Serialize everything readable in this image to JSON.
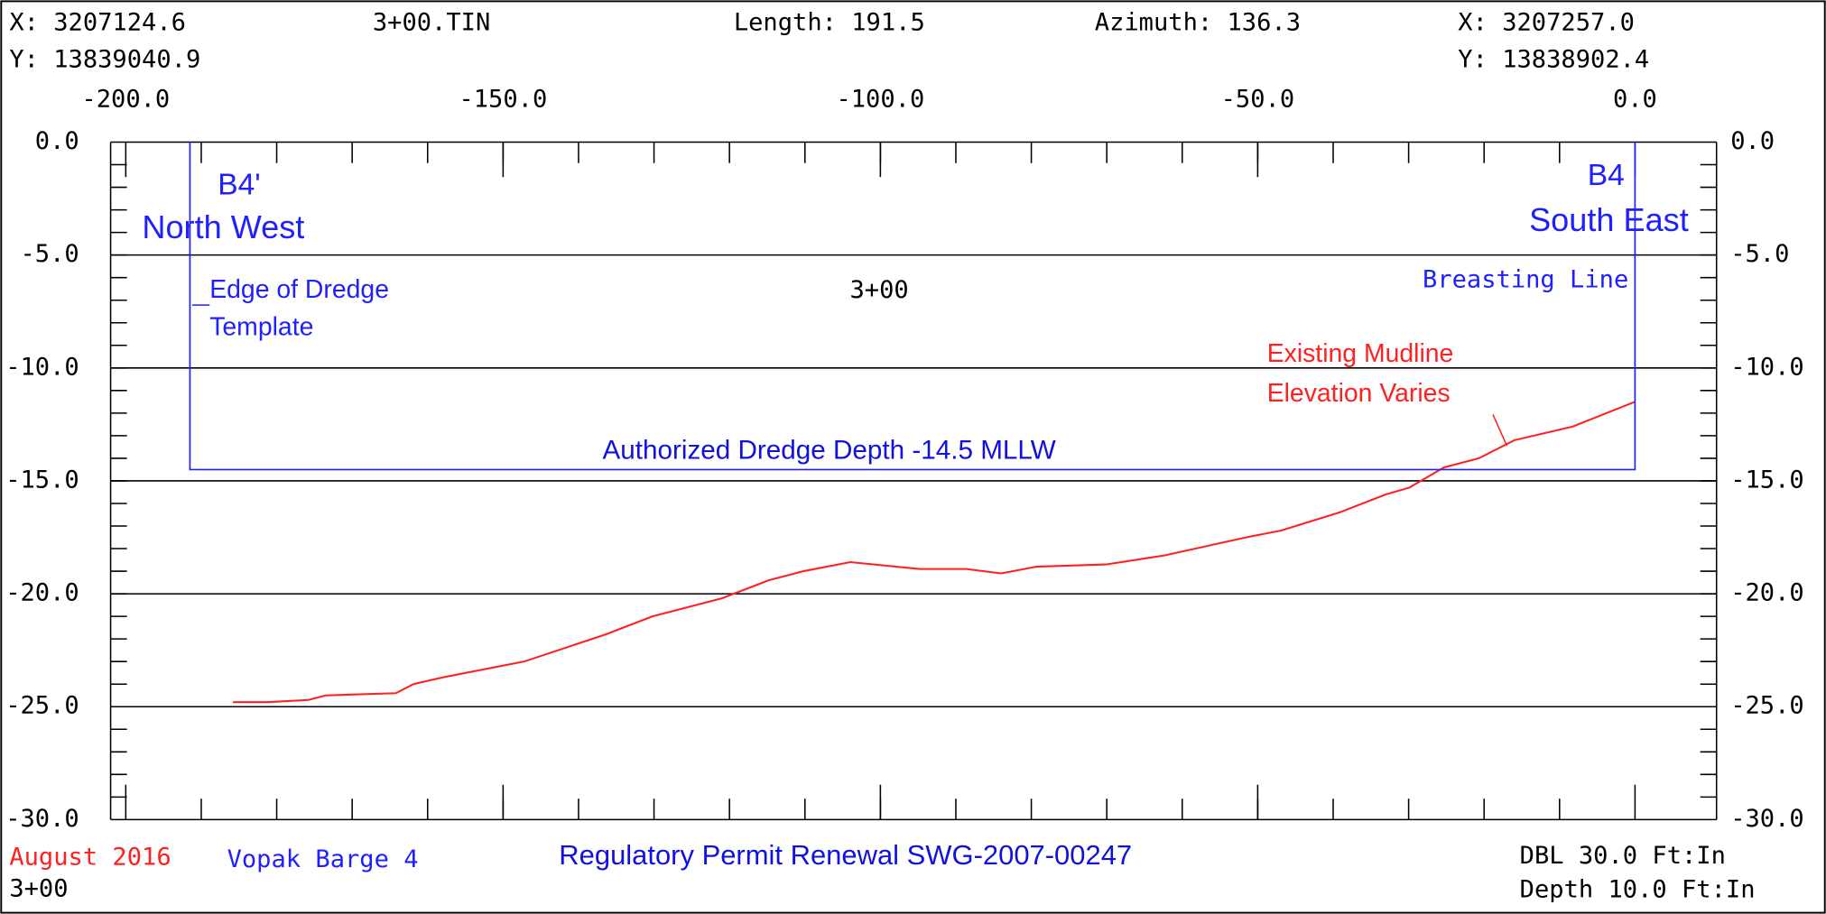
{
  "header": {
    "start_x": "X: 3207124.6",
    "start_y": "Y: 13839040.9",
    "file": "3+00.TIN",
    "length": "Length: 191.5",
    "azimuth": "Azimuth: 136.3",
    "end_x": "X: 3207257.0",
    "end_y": "Y: 13838902.4"
  },
  "chart_data": {
    "type": "line",
    "xlim": [
      -200,
      0
    ],
    "xticks": [
      {
        "value": -200,
        "label": "-200.0"
      },
      {
        "value": -150,
        "label": "-150.0"
      },
      {
        "value": -100,
        "label": "-100.0"
      },
      {
        "value": -50,
        "label": "-50.0"
      },
      {
        "value": 0,
        "label": "0.0"
      }
    ],
    "ylim": [
      -30,
      0
    ],
    "yticks": [
      {
        "value": 0,
        "label": "0.0"
      },
      {
        "value": -5,
        "label": "-5.0"
      },
      {
        "value": -10,
        "label": "-10.0"
      },
      {
        "value": -15,
        "label": "-15.0"
      },
      {
        "value": -20,
        "label": "-20.0"
      },
      {
        "value": -25,
        "label": "-25.0"
      },
      {
        "value": -30,
        "label": "-30.0"
      }
    ],
    "grid": true,
    "series": [
      {
        "color": "#ff2020",
        "x": [
          -185.8,
          -181.2,
          -175.8,
          -173.5,
          -164.2,
          -161.9,
          -158.0,
          -147.2,
          -136.4,
          -130.2,
          -121.0,
          -114.8,
          -110.2,
          -104.0,
          -94.8,
          -88.6,
          -84.0,
          -79.3,
          -70.1,
          -62.3,
          -51.5,
          -46.9,
          -39.2,
          -33.0,
          -29.9,
          -25.3,
          -20.7,
          -16.0,
          -8.3,
          0
        ],
        "values": [
          -24.8,
          -24.8,
          -24.7,
          -24.5,
          -24.4,
          -24.0,
          -23.7,
          -23.0,
          -21.8,
          -21.0,
          -20.2,
          -19.4,
          -19.0,
          -18.6,
          -18.9,
          -18.9,
          -19.1,
          -18.8,
          -18.7,
          -18.3,
          -17.5,
          -17.2,
          -16.4,
          -15.6,
          -15.3,
          -14.4,
          -14.0,
          -13.2,
          -12.6,
          -11.5
        ]
      },
      {
        "color": "#2020ff",
        "x": [
          -191.5,
          -191.5,
          0,
          0
        ],
        "values": [
          0,
          -14.5,
          -14.5,
          0
        ]
      }
    ],
    "annotations": [
      "B4'",
      "North West",
      "B4",
      "South East",
      "Edge of Dredge",
      "Template",
      "3+00",
      "Breasting Line",
      "Existing Mudline",
      "Elevation Varies",
      "Authorized Dredge Depth -14.5 MLLW"
    ]
  },
  "footer": {
    "date": "August 2016",
    "station": "3+00",
    "project": "Vopak Barge 4",
    "permit": "Regulatory Permit Renewal SWG-2007-00247",
    "scale_h": "DBL 30.0 Ft:In",
    "scale_v": "Depth 10.0 Ft:In"
  }
}
